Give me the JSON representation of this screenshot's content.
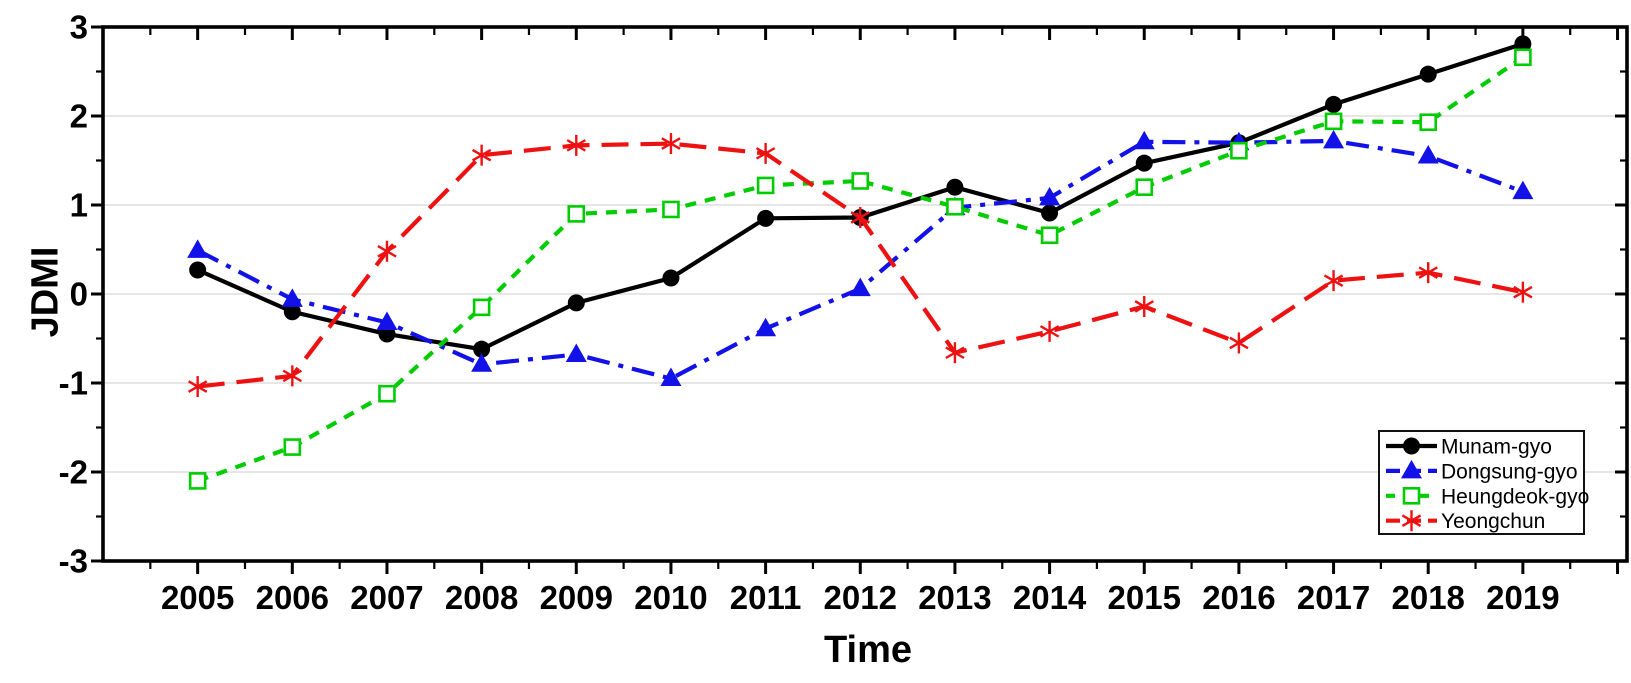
{
  "figure": {
    "kind": "line-chart-figure",
    "background": "#ffffff"
  },
  "chart_data": {
    "type": "line",
    "title": "",
    "xlabel": "Time",
    "ylabel": "JDMI",
    "x": [
      2005,
      2006,
      2007,
      2008,
      2009,
      2010,
      2011,
      2012,
      2013,
      2014,
      2015,
      2016,
      2017,
      2018,
      2019
    ],
    "series": [
      {
        "name": "Munam-gyo",
        "color": "#000000",
        "marker": "circle",
        "line_style": "solid",
        "values": [
          0.27,
          -0.2,
          -0.45,
          -0.62,
          -0.1,
          0.18,
          0.85,
          0.86,
          1.2,
          0.91,
          1.47,
          1.7,
          2.13,
          2.47,
          2.81
        ]
      },
      {
        "name": "Dongsung-gyo",
        "color": "#1212e8",
        "marker": "triangle",
        "line_style": "dash-dot",
        "values": [
          0.49,
          -0.06,
          -0.32,
          -0.79,
          -0.68,
          -0.95,
          -0.39,
          0.06,
          0.97,
          1.08,
          1.71,
          1.7,
          1.72,
          1.55,
          1.15
        ]
      },
      {
        "name": "Heungdeok-gyo",
        "color": "#00cc00",
        "marker": "open-square",
        "line_style": "short-dash",
        "values": [
          -2.1,
          -1.72,
          -1.12,
          -0.15,
          0.9,
          0.95,
          1.22,
          1.27,
          0.98,
          0.66,
          1.2,
          1.61,
          1.94,
          1.93,
          2.66
        ]
      },
      {
        "name": "Yeongchun",
        "color": "#ee1111",
        "marker": "asterisk",
        "line_style": "long-dash",
        "values": [
          -1.04,
          -0.92,
          0.48,
          1.56,
          1.67,
          1.69,
          1.58,
          0.86,
          -0.66,
          -0.42,
          -0.14,
          -0.55,
          0.15,
          0.24,
          0.02
        ]
      }
    ],
    "xlim": [
      2004,
      2020.1
    ],
    "ylim": [
      -3,
      3
    ],
    "x_major_ticks": [
      2005,
      2006,
      2007,
      2008,
      2009,
      2010,
      2011,
      2012,
      2013,
      2014,
      2015,
      2016,
      2017,
      2018,
      2019
    ],
    "y_major_ticks": [
      3,
      2,
      1,
      0,
      -1,
      -2,
      -3
    ],
    "minor_tick_step_x": 0.5,
    "minor_tick_step_y": 0.5,
    "grid": "horizontal-major",
    "grid_color": "#d8d8d8",
    "axis_color": "#000000",
    "legend": {
      "position": "lower-right",
      "entries": [
        "Munam-gyo",
        "Dongsung-gyo",
        "Heungdeok-gyo",
        "Yeongchun"
      ]
    }
  }
}
